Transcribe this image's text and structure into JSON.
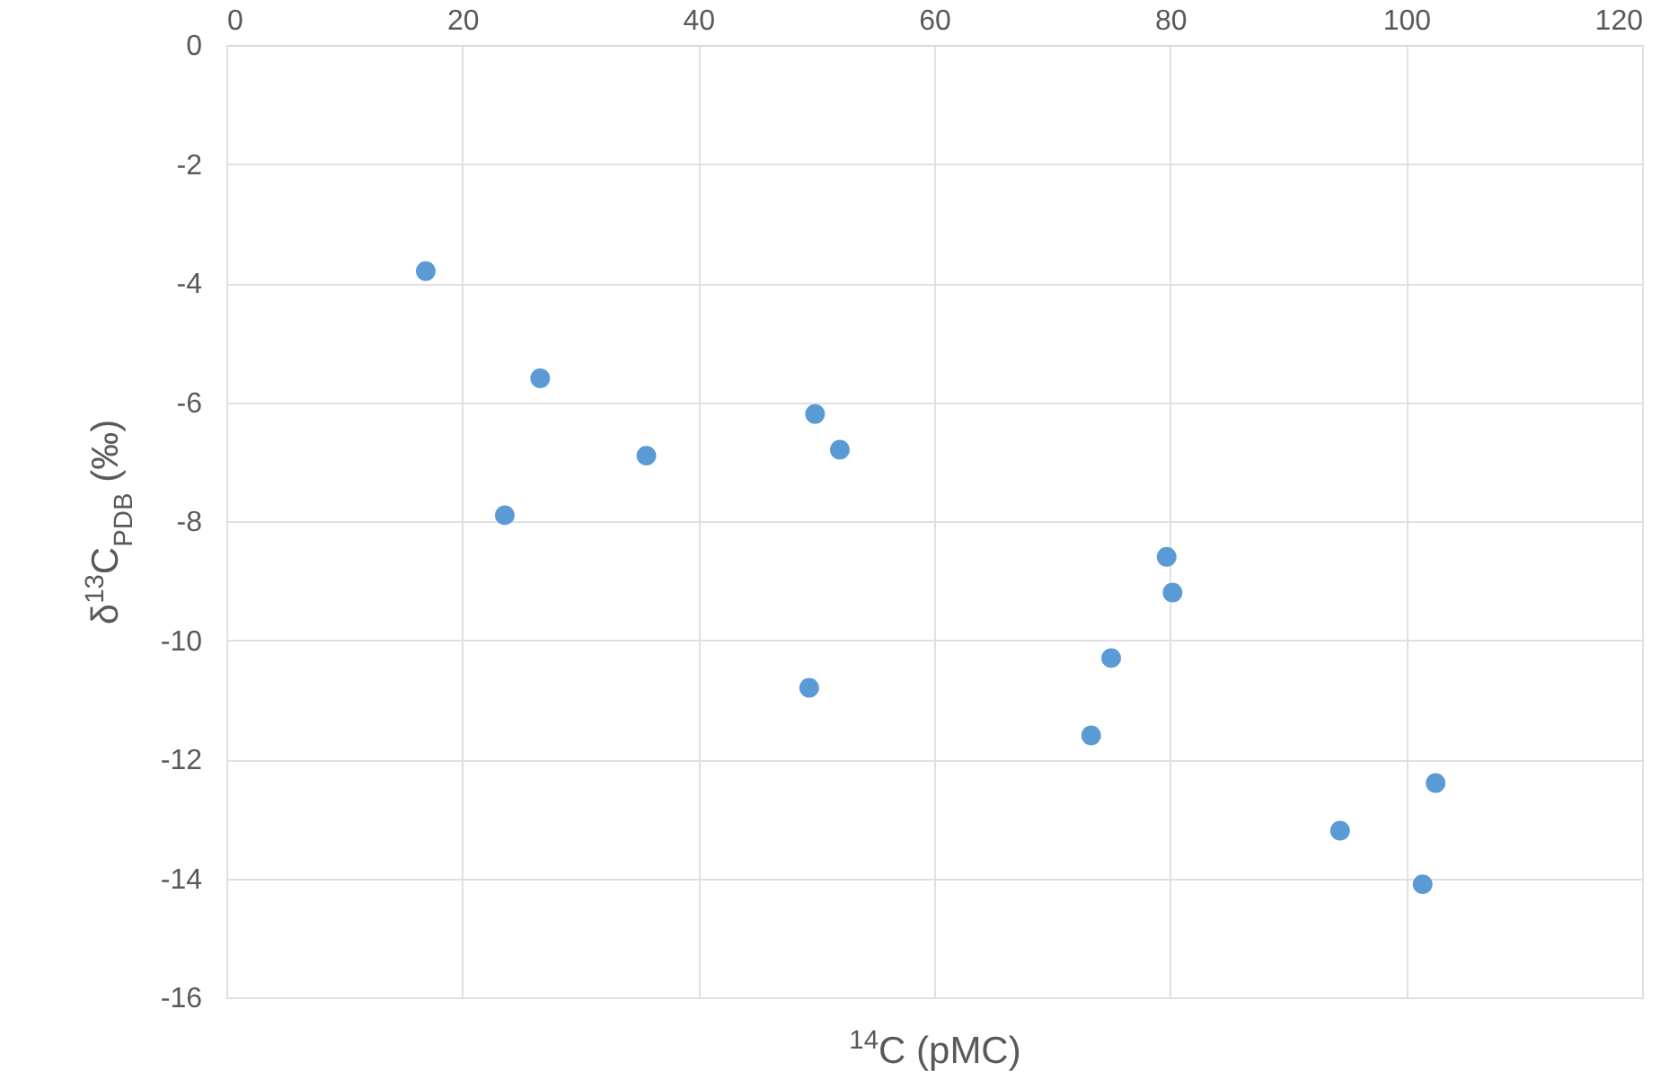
{
  "chart_data": {
    "type": "scatter",
    "xlabel": "$^{14}$C (pMC)",
    "ylabel": "δ$^{13}$C$_{PDB}$ (‰)",
    "x": [
      16.9,
      26.6,
      23.6,
      35.6,
      49.9,
      52.0,
      49.4,
      79.7,
      80.2,
      75.0,
      73.3,
      102.5,
      94.4,
      101.4
    ],
    "series": [
      {
        "color": "#5b9bd5",
        "values": [
          -3.8,
          -5.6,
          -7.9,
          -6.9,
          -6.2,
          -6.8,
          -10.8,
          -8.6,
          -9.2,
          -10.3,
          -11.6,
          -12.4,
          -13.2,
          -14.1
        ]
      }
    ],
    "xlim": [
      0,
      120
    ],
    "xticks": [
      0,
      20,
      40,
      60,
      80,
      100,
      120
    ],
    "ylim": [
      -16,
      0
    ],
    "yticks": [
      -16,
      -14,
      -12,
      -10,
      -8,
      -6,
      -4,
      -2,
      0
    ],
    "grid": true,
    "marker": "circle"
  }
}
